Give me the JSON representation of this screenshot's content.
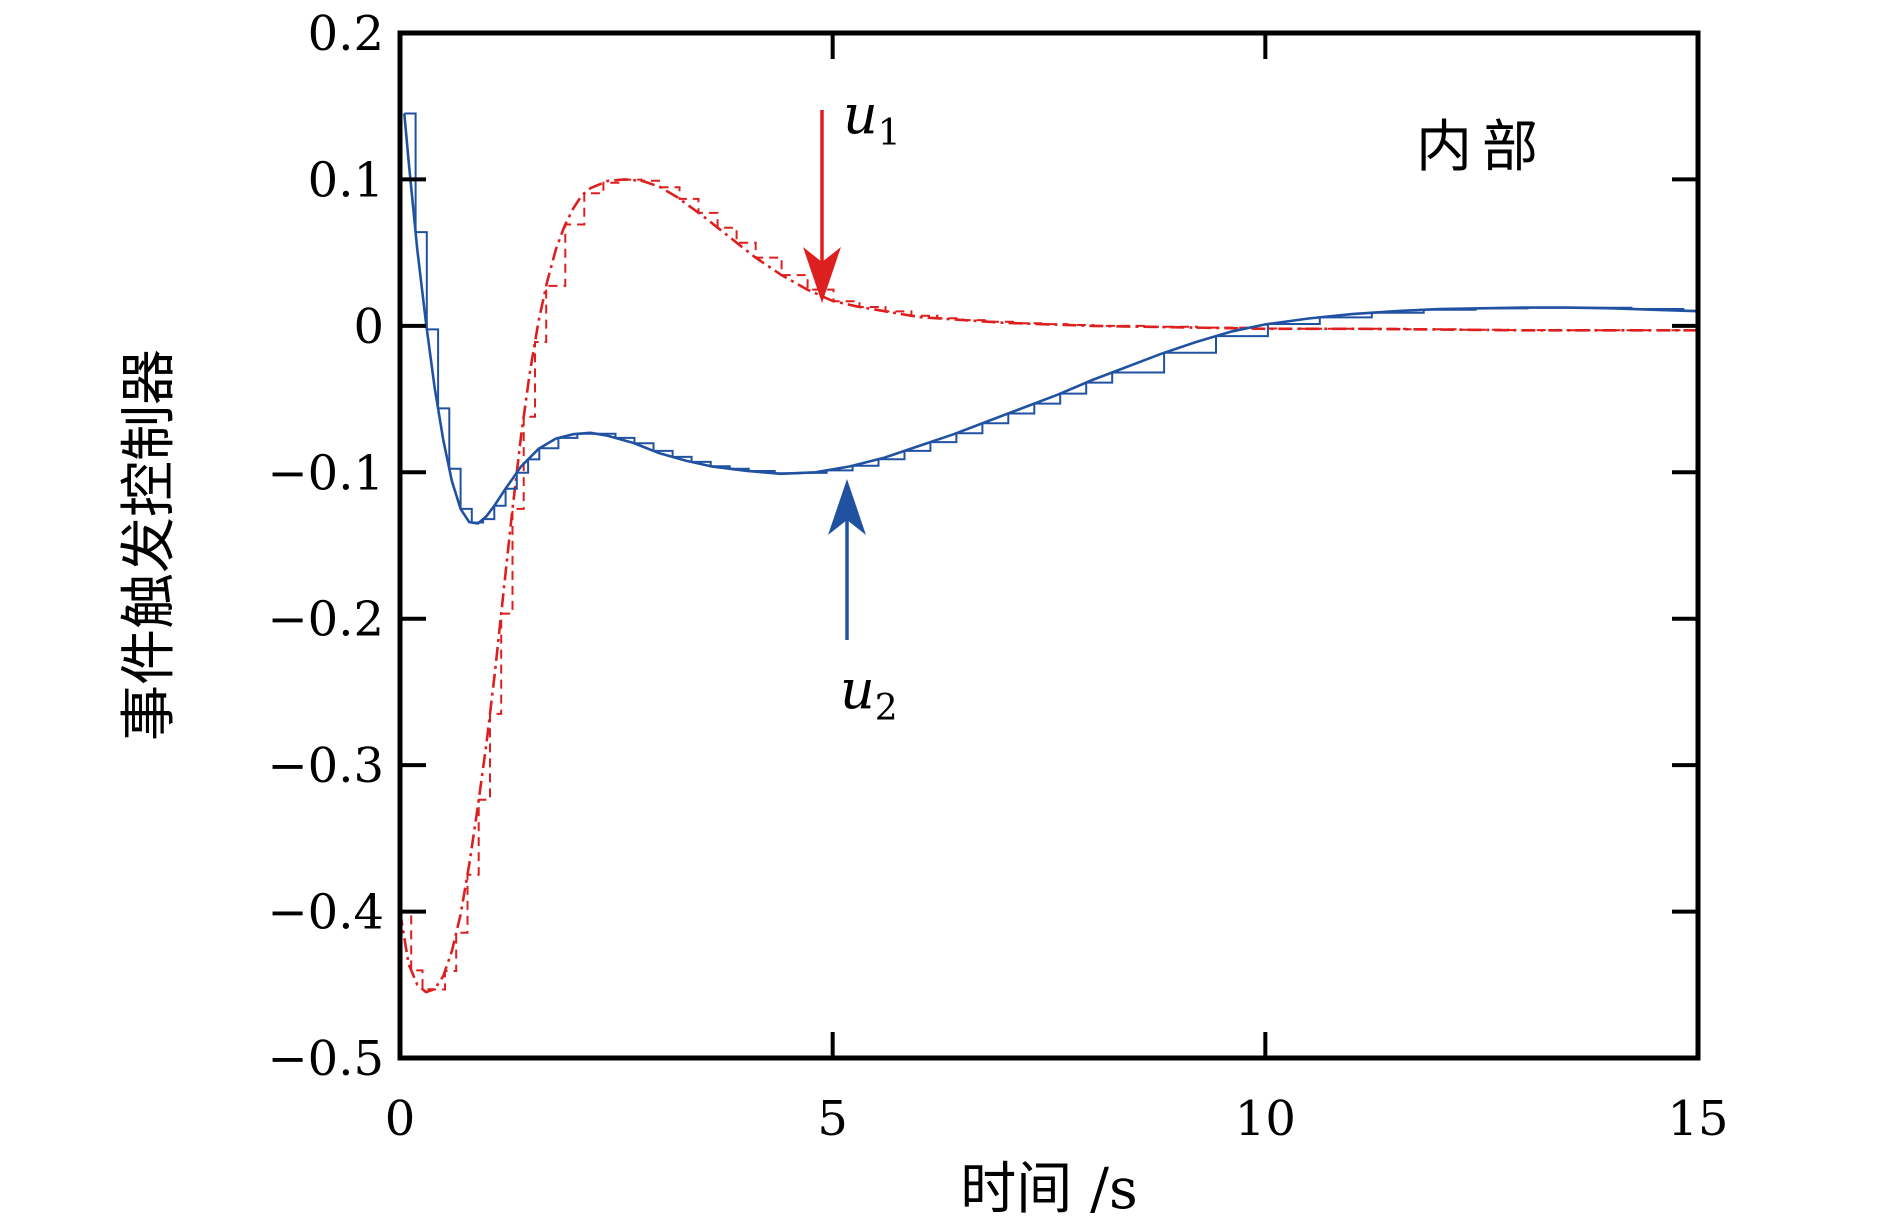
{
  "figure": {
    "background": "#ffffff",
    "frame_color": "#000000"
  },
  "axes": {
    "xlabel": "时间 /s",
    "ylabel": "事件触发控制器",
    "xlim": [
      0,
      15
    ],
    "ylim": [
      -0.5,
      0.2
    ],
    "xticks": [
      {
        "v": 0,
        "label": "0"
      },
      {
        "v": 5,
        "label": "5"
      },
      {
        "v": 10,
        "label": "10"
      },
      {
        "v": 15,
        "label": "15"
      }
    ],
    "yticks": [
      {
        "v": 0.2,
        "label": "0.2"
      },
      {
        "v": 0.1,
        "label": "0.1"
      },
      {
        "v": 0.0,
        "label": "0"
      },
      {
        "v": -0.1,
        "label": "−0.1"
      },
      {
        "v": -0.2,
        "label": "−0.2"
      },
      {
        "v": -0.3,
        "label": "−0.3"
      },
      {
        "v": -0.4,
        "label": "−0.4"
      },
      {
        "v": -0.5,
        "label": "−0.5"
      }
    ]
  },
  "annotations": {
    "corner": "内部",
    "u1": {
      "base": "u",
      "sub": "1"
    },
    "u2": {
      "base": "u",
      "sub": "2"
    }
  },
  "chart_data": {
    "type": "line",
    "title": "",
    "xlabel": "时间 /s",
    "ylabel": "事件触发控制器",
    "xlim": [
      0,
      15
    ],
    "ylim": [
      -0.5,
      0.2
    ],
    "grid": false,
    "legend": "none",
    "notes": "Each control signal is drawn twice: a continuous curve and a nearly-overlapping event-triggered (piecewise-constant) curve.",
    "series": [
      {
        "name": "u1",
        "color": "#de1f1f",
        "linestyle": "dashdot",
        "x": [
          0.0,
          0.1,
          0.2,
          0.3,
          0.4,
          0.5,
          0.6,
          0.7,
          0.8,
          0.9,
          1.0,
          1.1,
          1.2,
          1.3,
          1.4,
          1.5,
          1.6,
          1.7,
          1.8,
          1.9,
          2.0,
          2.1,
          2.2,
          2.4,
          2.6,
          2.8,
          3.0,
          3.2,
          3.5,
          3.8,
          4.1,
          4.4,
          4.7,
          5.0,
          5.3,
          5.6,
          6.0,
          6.5,
          7.0,
          7.5,
          8.0,
          9.0,
          10.0,
          11.0,
          12.0,
          13.0,
          14.0,
          15.0
        ],
        "y": [
          -0.4,
          -0.436,
          -0.45,
          -0.455,
          -0.453,
          -0.444,
          -0.427,
          -0.402,
          -0.368,
          -0.328,
          -0.285,
          -0.235,
          -0.18,
          -0.125,
          -0.075,
          -0.032,
          0.003,
          0.03,
          0.052,
          0.068,
          0.08,
          0.089,
          0.094,
          0.099,
          0.1,
          0.099,
          0.095,
          0.088,
          0.075,
          0.061,
          0.047,
          0.035,
          0.025,
          0.017,
          0.013,
          0.01,
          0.006,
          0.004,
          0.002,
          0.001,
          0.0,
          -0.001,
          -0.002,
          -0.002,
          -0.0025,
          -0.003,
          -0.003,
          -0.003
        ]
      },
      {
        "name": "u2",
        "color": "#2152a2",
        "linestyle": "solid",
        "x": [
          0.05,
          0.1,
          0.2,
          0.3,
          0.4,
          0.5,
          0.6,
          0.7,
          0.8,
          0.9,
          1.0,
          1.1,
          1.2,
          1.4,
          1.6,
          1.8,
          2.0,
          2.2,
          2.4,
          2.7,
          3.0,
          3.3,
          3.6,
          4.0,
          4.4,
          4.8,
          5.2,
          5.6,
          6.0,
          6.4,
          6.8,
          7.2,
          7.6,
          8.0,
          8.4,
          8.8,
          9.2,
          9.6,
          10.0,
          10.5,
          11.0,
          11.5,
          12.0,
          12.5,
          13.0,
          13.5,
          14.0,
          14.5,
          15.0
        ],
        "y": [
          0.145,
          0.112,
          0.052,
          0.002,
          -0.042,
          -0.078,
          -0.106,
          -0.125,
          -0.134,
          -0.135,
          -0.13,
          -0.122,
          -0.113,
          -0.096,
          -0.084,
          -0.077,
          -0.074,
          -0.073,
          -0.075,
          -0.08,
          -0.087,
          -0.092,
          -0.096,
          -0.099,
          -0.101,
          -0.1,
          -0.096,
          -0.09,
          -0.082,
          -0.074,
          -0.065,
          -0.056,
          -0.047,
          -0.037,
          -0.028,
          -0.019,
          -0.011,
          -0.004,
          0.001,
          0.005,
          0.008,
          0.01,
          0.0115,
          0.012,
          0.0125,
          0.0125,
          0.012,
          0.011,
          0.01
        ]
      }
    ]
  }
}
